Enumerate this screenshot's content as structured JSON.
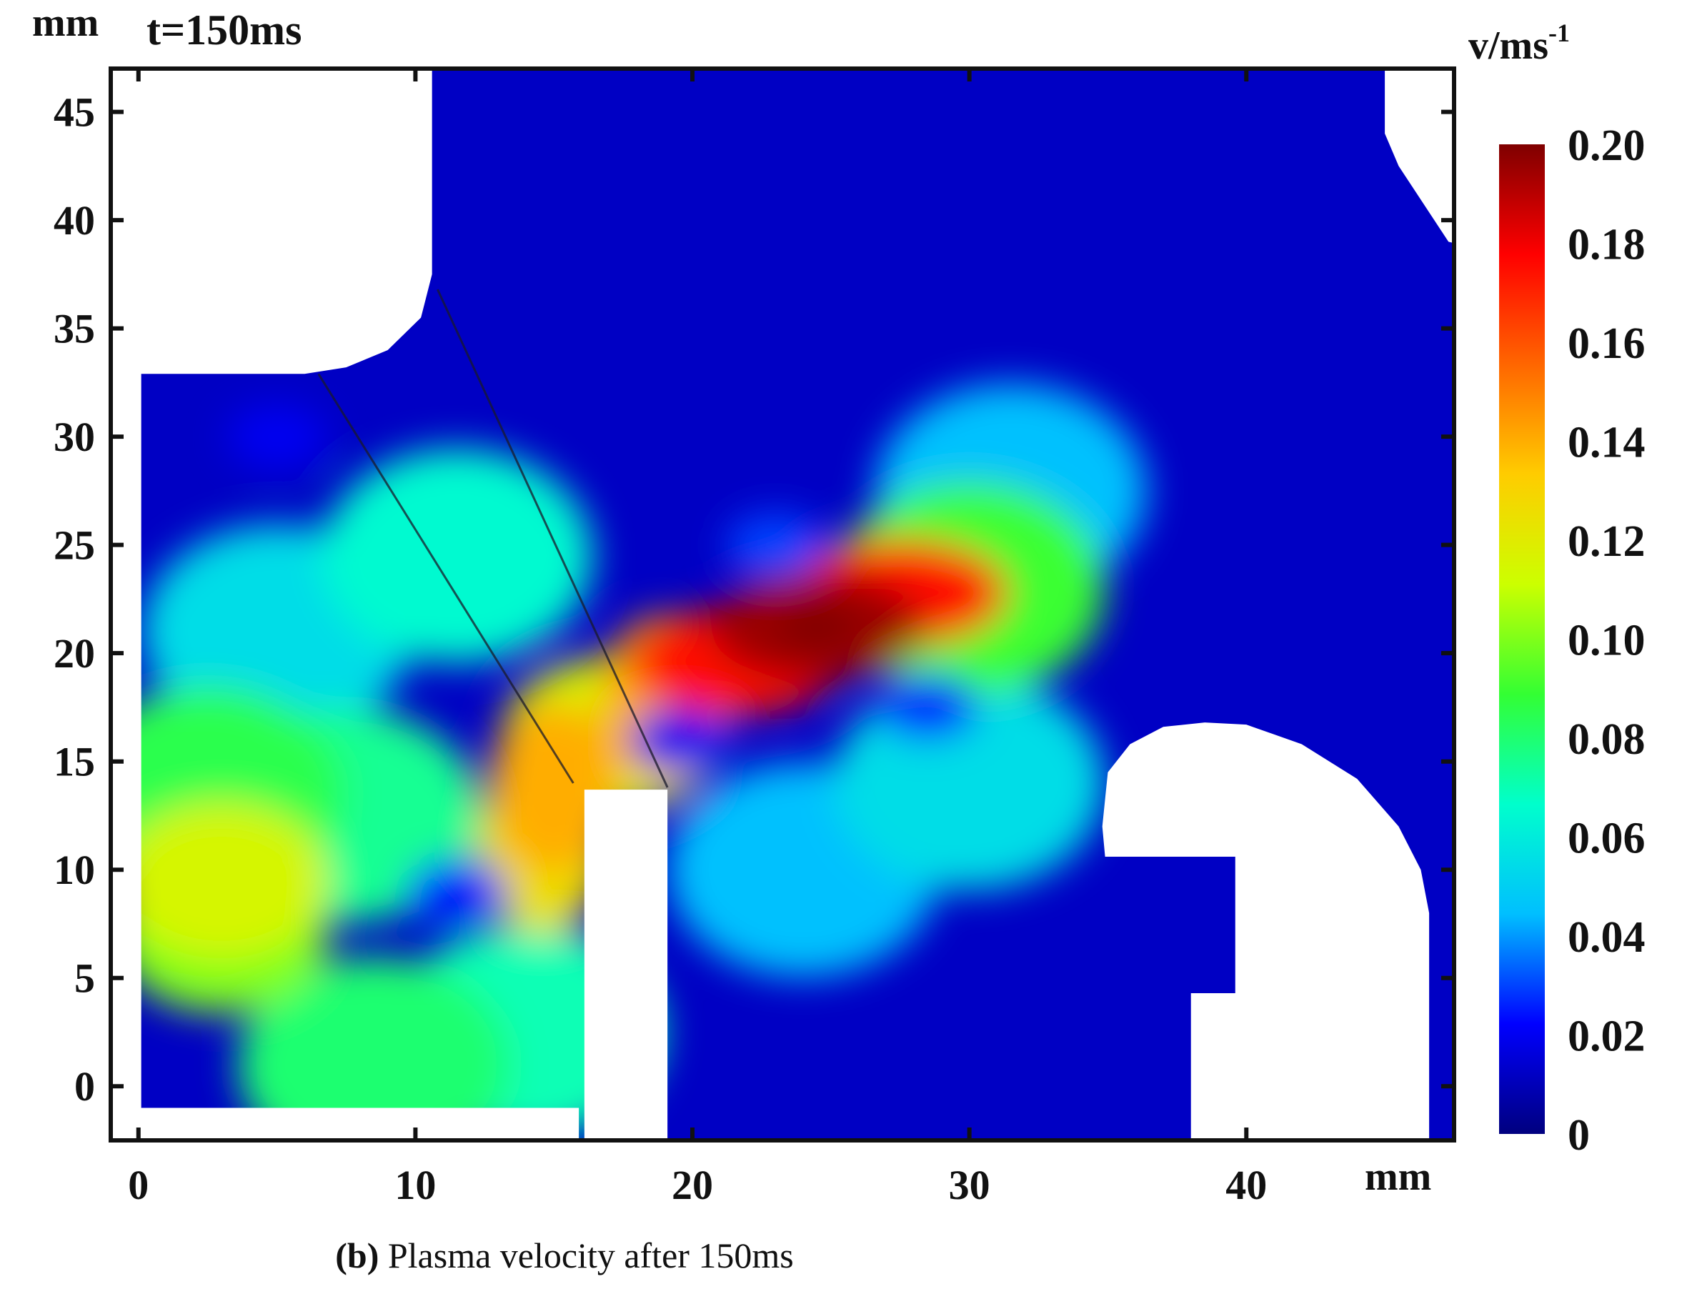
{
  "chart_data": {
    "type": "heatmap",
    "title": "t=150ms",
    "xlabel": "mm",
    "ylabel": "mm",
    "xlim": [
      -1,
      47.5
    ],
    "ylim": [
      -2.5,
      47
    ],
    "x_ticks": [
      0,
      10,
      20,
      30,
      40
    ],
    "y_ticks": [
      0,
      5,
      10,
      15,
      20,
      25,
      30,
      35,
      40,
      45
    ],
    "colorbar": {
      "label_main": "v/ms",
      "label_exp": "-1",
      "range": [
        0,
        0.2
      ],
      "ticks": [
        0,
        0.02,
        0.04,
        0.06,
        0.08,
        0.1,
        0.12,
        0.14,
        0.16,
        0.18,
        0.2
      ],
      "tick_labels": [
        "0",
        "0.02",
        "0.04",
        "0.06",
        "0.08",
        "0.10",
        "0.12",
        "0.14",
        "0.16",
        "0.18",
        "0.20"
      ],
      "colormap": [
        "#00007f",
        "#0000ff",
        "#00bfff",
        "#00ffcc",
        "#33ff33",
        "#ccff00",
        "#ffcc00",
        "#ff6600",
        "#ff0000",
        "#7f0000"
      ]
    },
    "field_hotspots": [
      {
        "x": 24.5,
        "y": 21.2,
        "v": 0.195
      },
      {
        "x": 27.5,
        "y": 22.8,
        "v": 0.175
      },
      {
        "x": 21.5,
        "y": 19.6,
        "v": 0.175
      },
      {
        "x": 19.0,
        "y": 17.8,
        "v": 0.14
      },
      {
        "x": 17.0,
        "y": 16.2,
        "v": 0.115
      },
      {
        "x": 15.0,
        "y": 13.8,
        "v": 0.14
      },
      {
        "x": 14.6,
        "y": 11.0,
        "v": 0.125
      },
      {
        "x": 30.0,
        "y": 23.0,
        "v": 0.09
      },
      {
        "x": 3.0,
        "y": 9.5,
        "v": 0.115
      },
      {
        "x": 3.0,
        "y": 7.0,
        "v": 0.1
      },
      {
        "x": 2.5,
        "y": 13.5,
        "v": 0.085
      },
      {
        "x": 7.5,
        "y": 12.5,
        "v": 0.075
      },
      {
        "x": 8.5,
        "y": 1.0,
        "v": 0.08
      },
      {
        "x": 14.0,
        "y": 2.5,
        "v": 0.07
      },
      {
        "x": 11.5,
        "y": 24.5,
        "v": 0.065
      },
      {
        "x": 5.0,
        "y": 21.0,
        "v": 0.055
      },
      {
        "x": 24.0,
        "y": 10.0,
        "v": 0.045
      },
      {
        "x": 30.0,
        "y": 14.0,
        "v": 0.055
      },
      {
        "x": 31.5,
        "y": 27.5,
        "v": 0.045
      }
    ],
    "field_lows": [
      {
        "x": 28.5,
        "y": 17.5,
        "v": 0.025
      },
      {
        "x": 23.0,
        "y": 25.0,
        "v": 0.03
      },
      {
        "x": 11.5,
        "y": 9.0,
        "v": 0.025
      },
      {
        "x": 5.0,
        "y": 30.0,
        "v": 0.02
      },
      {
        "x": 19.5,
        "y": 16.0,
        "v": 0.02
      }
    ]
  },
  "caption": {
    "label": "(b)",
    "text": " Plasma velocity after 150ms"
  }
}
